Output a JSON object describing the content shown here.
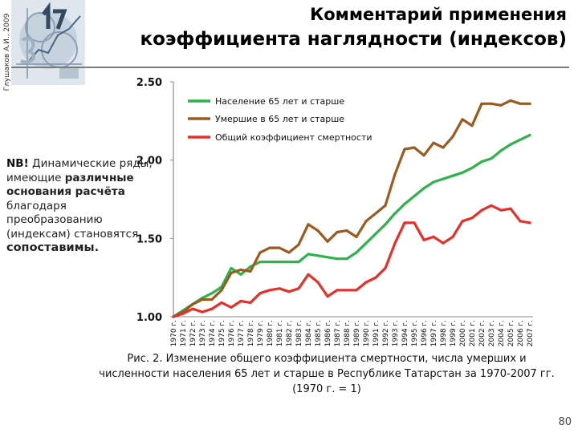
{
  "author_vertical": "Глушаков А.И., 2009",
  "header": {
    "title_line1": "Комментарий применения",
    "title_line2": "коэффициента наглядности (индексов)"
  },
  "nb_note": {
    "mark": "NB!",
    "part1": " Динамические ряды, имеющие ",
    "highlight1": "различные основания расчёта",
    "part2": " благодаря преобразованию (индексам) становятся ",
    "highlight2": "сопоставимы."
  },
  "caption": "Рис. 2. Изменение общего коэффициента смертности, числа умерших и численности населения 65 лет и старше в Республике Татарстан за 1970-2007 гг. (1970 г. = 1)",
  "page_number": "80",
  "chart_data": {
    "type": "line",
    "ylim": [
      1.0,
      2.5
    ],
    "y_ticks": [
      "1.00",
      "1.50",
      "2.00",
      "2.50"
    ],
    "y_tick_values": [
      1.0,
      1.5,
      2.0,
      2.5
    ],
    "categories": [
      "1970 г.",
      "1971 г.",
      "1972 г.",
      "1973 г.",
      "1974 г.",
      "1975 г.",
      "1976 г.",
      "1977 г.",
      "1978 г.",
      "1979 г.",
      "1980 г.",
      "1981 г.",
      "1982 г.",
      "1983 г.",
      "1984 г.",
      "1985 г.",
      "1986 г.",
      "1987 г.",
      "1988 г.",
      "1989 г.",
      "1990 г.",
      "1991 г.",
      "1992 г.",
      "1993 г.",
      "1994 г.",
      "1995 г.",
      "1996 г.",
      "1997 г.",
      "1998 г.",
      "1999 г.",
      "2000 г.",
      "2001 г.",
      "2002 г.",
      "2003 г.",
      "2004 г.",
      "2005 г.",
      "2006 г.",
      "2007 г."
    ],
    "legend_position": "top-left",
    "series": [
      {
        "name": "Население 65 лет и старше",
        "color": "#2db34a",
        "values": [
          1.0,
          1.04,
          1.08,
          1.12,
          1.15,
          1.19,
          1.31,
          1.27,
          1.32,
          1.35,
          1.35,
          1.35,
          1.35,
          1.35,
          1.4,
          1.39,
          1.38,
          1.37,
          1.37,
          1.41,
          1.47,
          1.53,
          1.59,
          1.66,
          1.72,
          1.77,
          1.82,
          1.86,
          1.88,
          1.9,
          1.92,
          1.95,
          1.99,
          2.01,
          2.06,
          2.1,
          2.13,
          2.16
        ]
      },
      {
        "name": "Умершие в 65 лет и старше",
        "color": "#9b5a1f",
        "values": [
          1.0,
          1.03,
          1.08,
          1.11,
          1.11,
          1.17,
          1.28,
          1.3,
          1.29,
          1.41,
          1.44,
          1.44,
          1.41,
          1.46,
          1.59,
          1.55,
          1.48,
          1.54,
          1.55,
          1.51,
          1.61,
          1.66,
          1.71,
          1.91,
          2.07,
          2.08,
          2.03,
          2.11,
          2.08,
          2.15,
          2.26,
          2.22,
          2.36,
          2.36,
          2.35,
          2.38,
          2.36,
          2.36
        ]
      },
      {
        "name": "Общий коэффициент смертности",
        "color": "#e8302a",
        "values": [
          1.0,
          1.02,
          1.05,
          1.03,
          1.05,
          1.09,
          1.06,
          1.1,
          1.09,
          1.15,
          1.17,
          1.18,
          1.16,
          1.18,
          1.27,
          1.22,
          1.13,
          1.17,
          1.17,
          1.17,
          1.22,
          1.25,
          1.31,
          1.47,
          1.6,
          1.6,
          1.49,
          1.51,
          1.47,
          1.51,
          1.61,
          1.63,
          1.68,
          1.71,
          1.68,
          1.69,
          1.61,
          1.6
        ]
      }
    ]
  }
}
